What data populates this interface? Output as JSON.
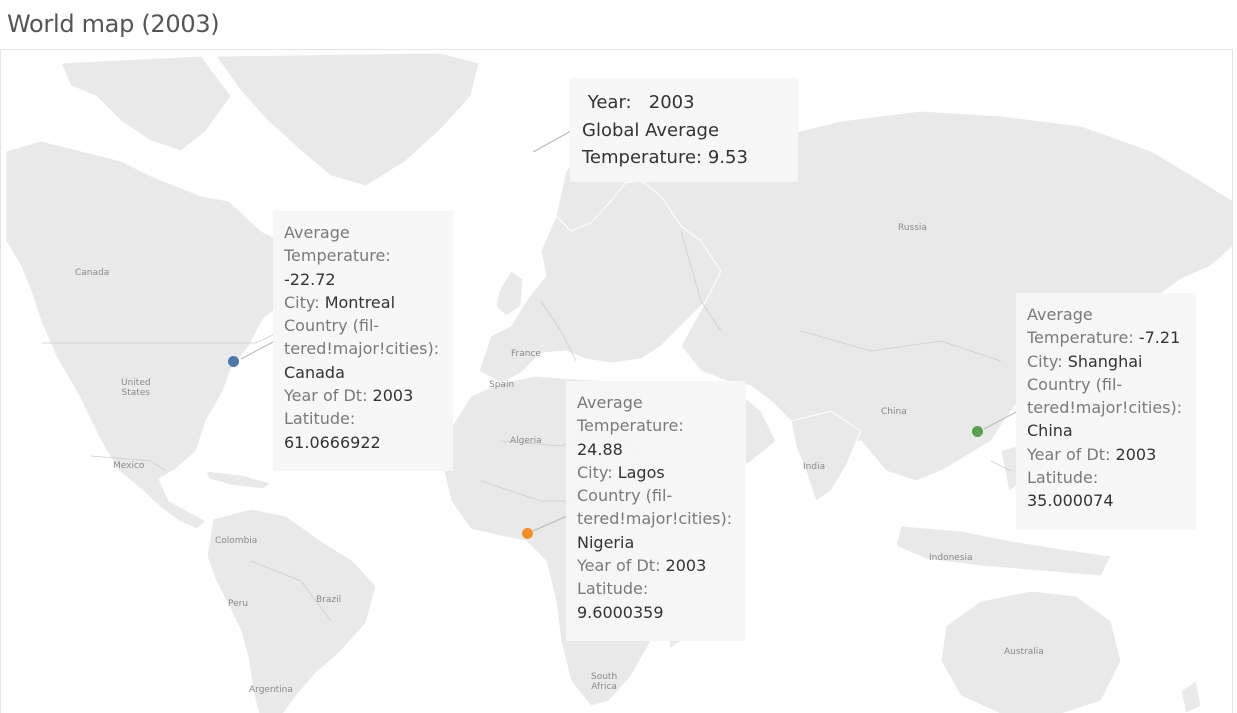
{
  "title": "World map (2003)",
  "map_labels": {
    "canada": "Canada",
    "united_states": "United\nStates",
    "mexico": "Mexico",
    "colombia": "Colombia",
    "peru": "Peru",
    "brazil": "Brazil",
    "argentina": "Argentina",
    "france": "France",
    "spain": "Spain",
    "algeria": "Algeria",
    "south_africa": "South\nAfrica",
    "russia": "Russia",
    "china": "China",
    "india": "India",
    "indonesia": "Indonesia",
    "australia": "Australia"
  },
  "year_box": {
    "year_label": "Year:",
    "year_value": "2003",
    "avg_line1": "Global Average",
    "avg_label": "Temperature:",
    "avg_value": "9.53"
  },
  "annotations": [
    {
      "avg_l1": "Average",
      "avg_l2": "Temperature:",
      "temp": "-22.72",
      "city_label": "City:",
      "city": "Montreal",
      "country_l1": "Country (fil-",
      "country_l2": "tered!major!cities):",
      "country": "Canada",
      "year_label": "Year of Dt:",
      "year": "2003",
      "lat_label": "Latitude:",
      "lat": "61.0666922",
      "color": "#4e79a7"
    },
    {
      "avg_l1": "Average",
      "avg_l2": "Temperature:",
      "temp": "24.88",
      "city_label": "City:",
      "city": "Lagos",
      "country_l1": "Country (fil-",
      "country_l2": "tered!major!cities):",
      "country": "Nigeria",
      "year_label": "Year of Dt:",
      "year": "2003",
      "lat_label": "Latitude:",
      "lat": "9.6000359",
      "color": "#f28e2b"
    },
    {
      "avg_l1": "Average",
      "avg_l2": "Temperature:",
      "temp": "-7.21",
      "city_label": "City:",
      "city": "Shanghai",
      "country_l1": "Country (fil-",
      "country_l2": "tered!major!cities):",
      "country": "China",
      "year_label": "Year of Dt:",
      "year": "2003",
      "lat_label": "Latitude:",
      "lat": "35.000074",
      "color": "#59a14f"
    }
  ]
}
